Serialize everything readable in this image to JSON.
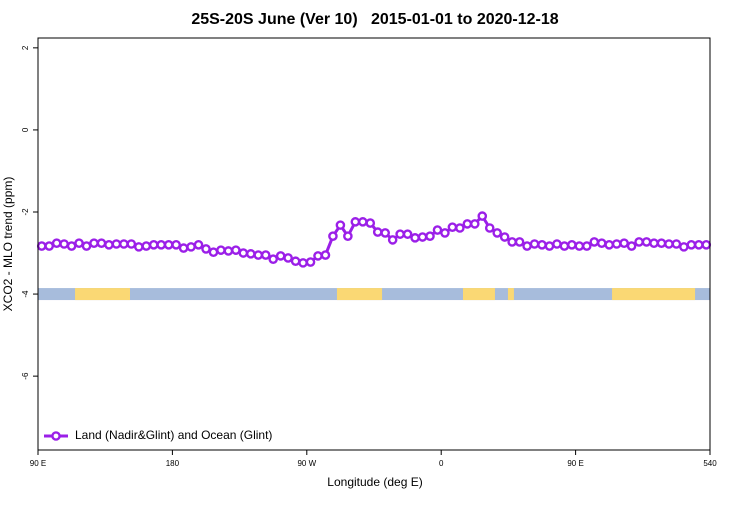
{
  "chart_data": {
    "type": "line",
    "title": "25S-20S June (Ver 10)   2015-01-01 to 2020-12-18",
    "x_label": "Longitude (deg E)",
    "y_label": "XCO2 - MLO trend (ppm)",
    "xlim": [
      90,
      540
    ],
    "ylim": [
      -7.8,
      2.24
    ],
    "xticks": [
      {
        "value": 90,
        "label": "90 E"
      },
      180,
      {
        "value": 270,
        "label": "90 W"
      },
      {
        "value": 360,
        "label": "0"
      },
      {
        "value": 450,
        "label": "90 E"
      },
      540
    ],
    "yticks": [
      2,
      0,
      -2,
      -4,
      -6
    ],
    "legend": "bottom-left",
    "grid": false,
    "x": [
      92.5,
      97.5,
      102.5,
      107.5,
      112.5,
      117.5,
      122.5,
      127.5,
      132.5,
      137.5,
      142.5,
      147.5,
      152.5,
      157.5,
      162.5,
      167.5,
      172.5,
      177.5,
      182.5,
      187.5,
      192.5,
      197.5,
      202.5,
      207.5,
      212.5,
      217.5,
      222.5,
      227.5,
      232.5,
      237.5,
      242.5,
      247.5,
      252.5,
      257.5,
      262.5,
      267.5,
      272.5,
      277.5,
      282.5,
      287.5,
      292.5,
      297.5,
      302.5,
      307.5,
      312.5,
      317.5,
      322.5,
      327.5,
      332.5,
      337.5,
      342.5,
      347.5,
      352.5,
      357.5,
      362.5,
      367.5,
      372.5,
      377.5,
      382.5,
      387.5,
      392.5,
      397.5,
      402.5,
      407.5,
      412.5,
      417.5,
      422.5,
      427.5,
      432.5,
      437.5,
      442.5,
      447.5,
      452.5,
      457.5,
      462.5,
      467.5,
      472.5,
      477.5,
      482.5,
      487.5,
      492.5,
      497.5,
      502.5,
      507.5,
      512.5,
      517.5,
      522.5,
      527.5,
      532.5,
      537.5
    ],
    "series": [
      {
        "name": "Land (Nadir&Glint) and Ocean (Glint)",
        "color": "#9b1fe8",
        "values": [
          -2.83,
          -2.83,
          -2.76,
          -2.78,
          -2.83,
          -2.76,
          -2.83,
          -2.76,
          -2.76,
          -2.8,
          -2.78,
          -2.78,
          -2.78,
          -2.85,
          -2.83,
          -2.8,
          -2.8,
          -2.8,
          -2.8,
          -2.88,
          -2.85,
          -2.8,
          -2.9,
          -2.98,
          -2.93,
          -2.95,
          -2.93,
          -3.0,
          -3.02,
          -3.05,
          -3.05,
          -3.15,
          -3.07,
          -3.12,
          -3.2,
          -3.24,
          -3.22,
          -3.07,
          -3.05,
          -2.59,
          -2.32,
          -2.59,
          -2.24,
          -2.24,
          -2.27,
          -2.49,
          -2.51,
          -2.68,
          -2.54,
          -2.54,
          -2.63,
          -2.61,
          -2.59,
          -2.44,
          -2.51,
          -2.37,
          -2.39,
          -2.29,
          -2.29,
          -2.1,
          -2.39,
          -2.51,
          -2.61,
          -2.73,
          -2.73,
          -2.83,
          -2.78,
          -2.8,
          -2.83,
          -2.78,
          -2.83,
          -2.8,
          -2.83,
          -2.83,
          -2.73,
          -2.76,
          -2.8,
          -2.78,
          -2.76,
          -2.83,
          -2.73,
          -2.73,
          -2.76,
          -2.76,
          -2.78,
          -2.78,
          -2.85,
          -2.8,
          -2.8,
          -2.8
        ]
      }
    ],
    "surface_band": {
      "y": -4,
      "ocean_color": "#a7bcdc",
      "land_color": "#fad874",
      "land": [
        [
          114.8,
          151.6
        ],
        [
          290.2,
          320.4
        ],
        [
          374.6,
          396
        ],
        [
          404.7,
          408.7
        ],
        [
          474.4,
          530
        ]
      ]
    }
  }
}
